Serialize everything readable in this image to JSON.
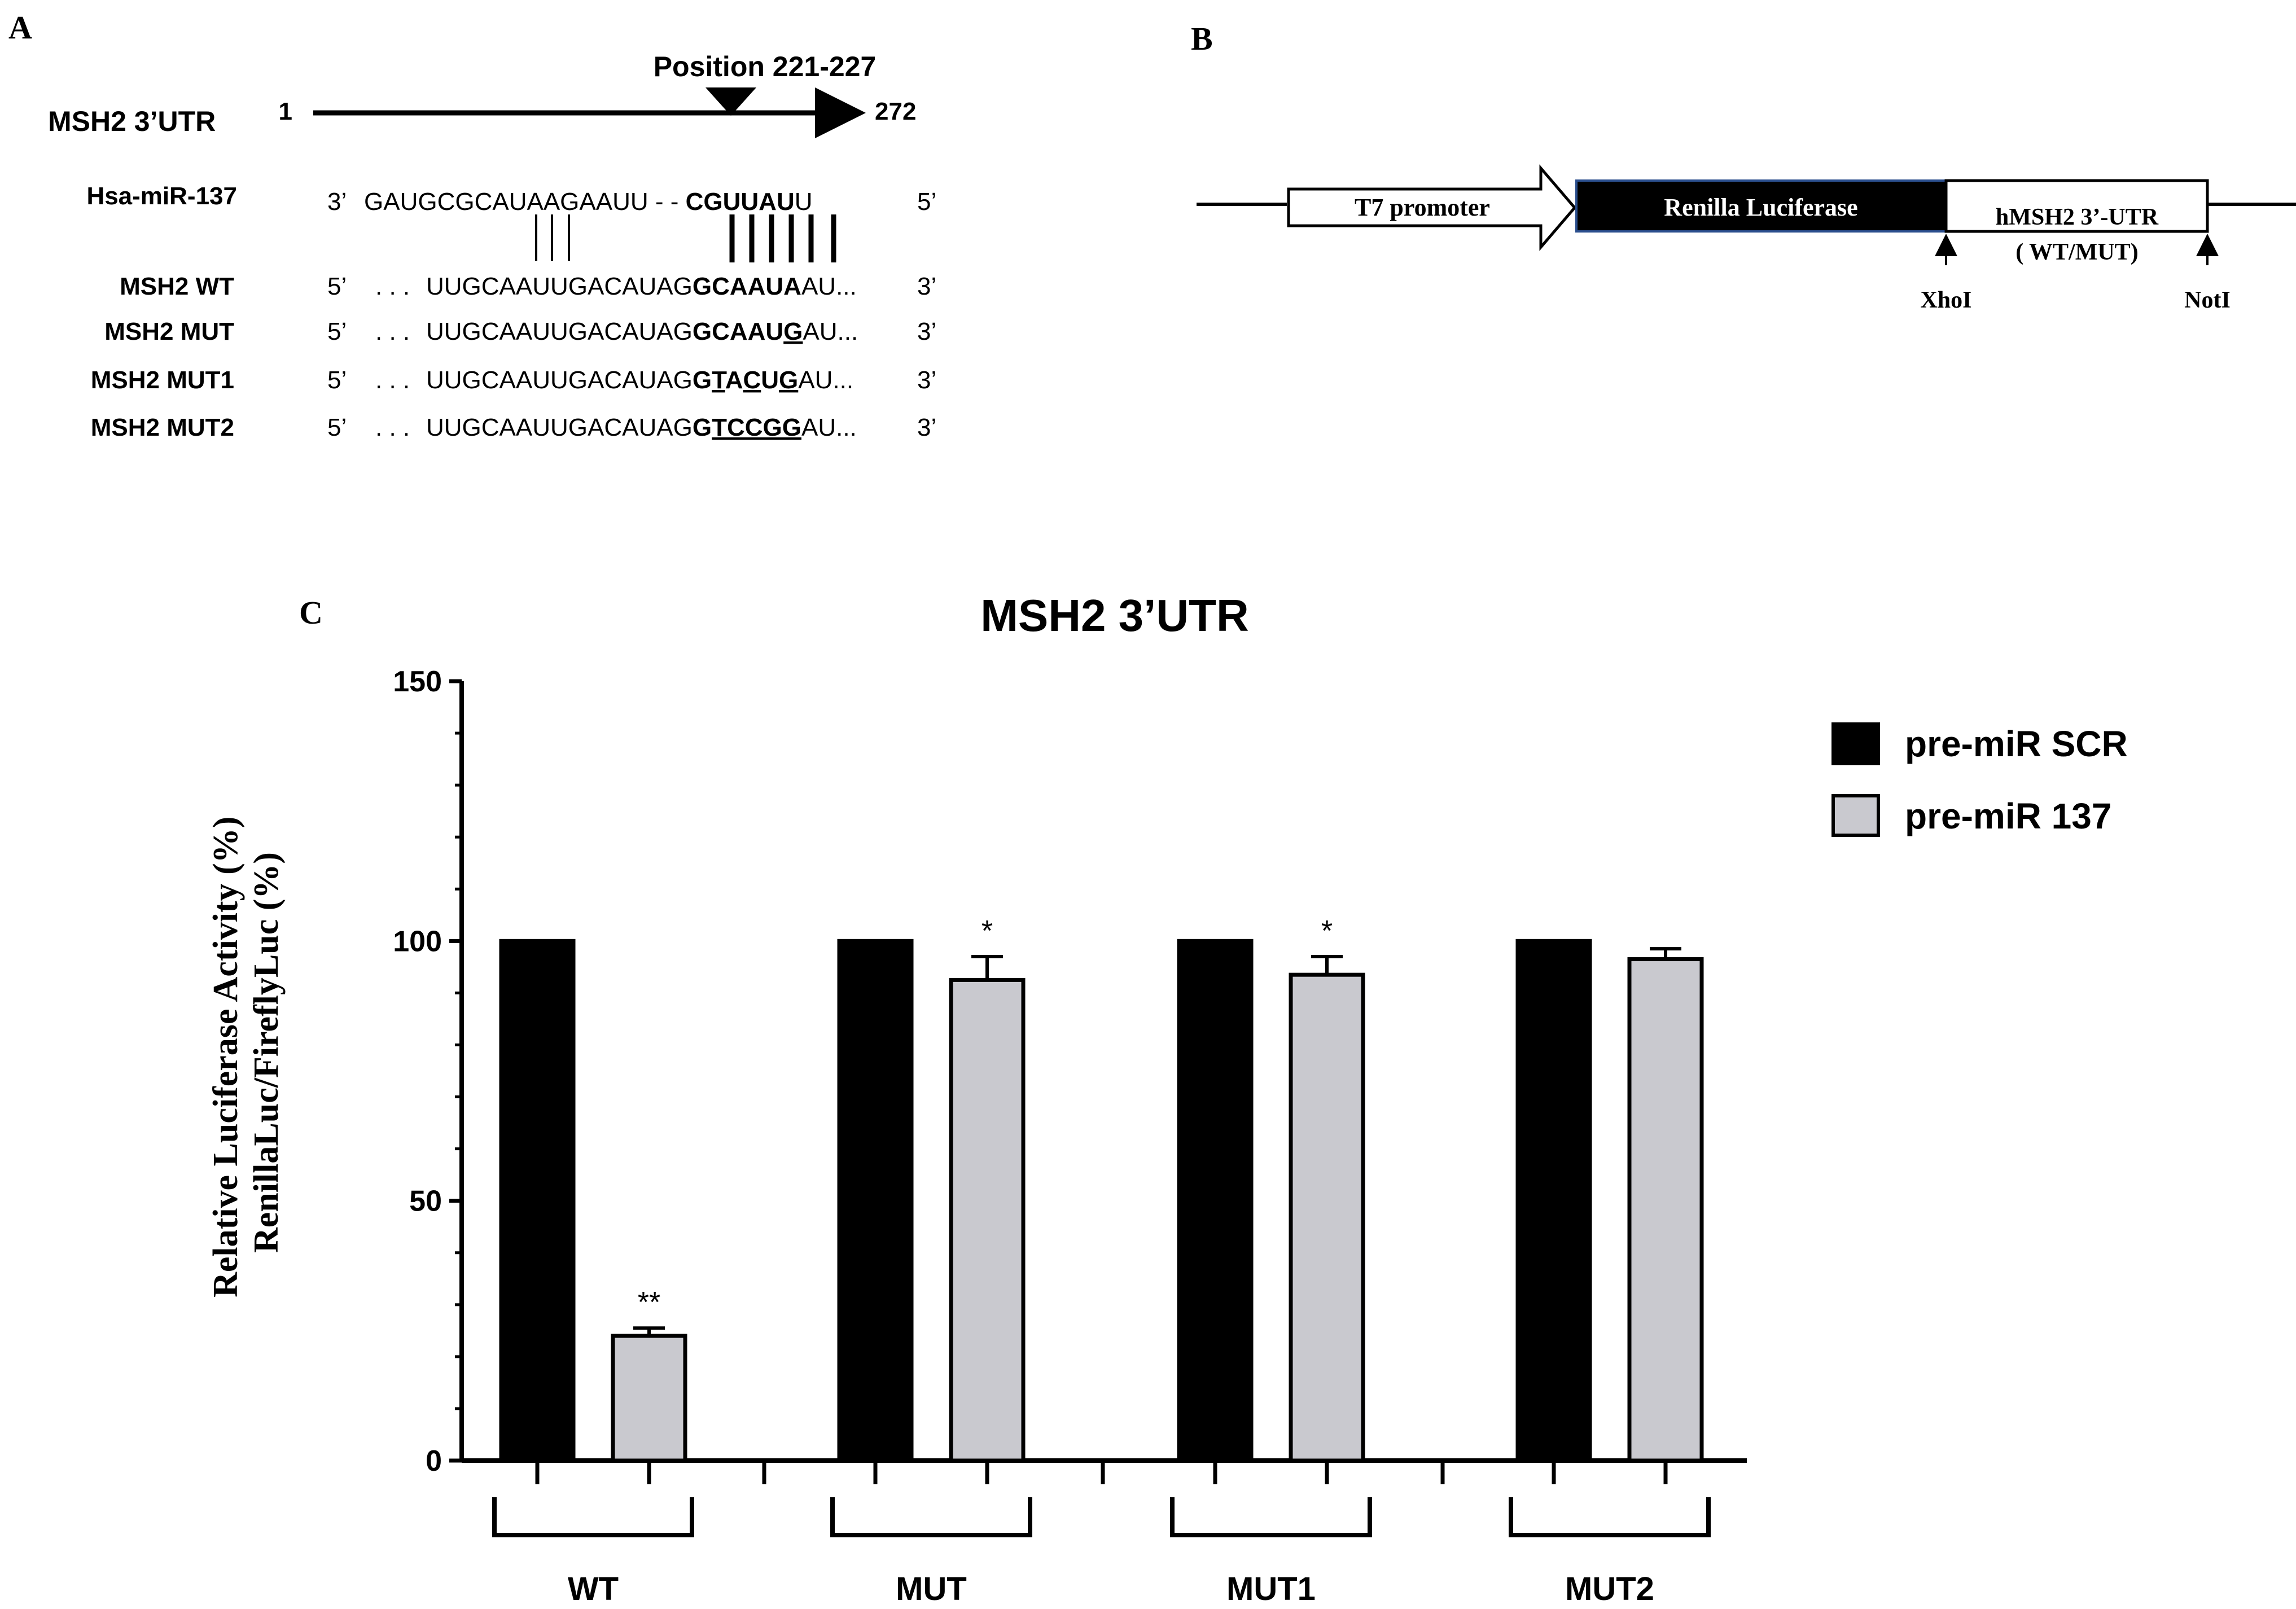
{
  "panels": {
    "a": {
      "letter": "A",
      "position_label": "Position 221-227",
      "utr_label": "MSH2  3’UTR",
      "utr_start": "1",
      "utr_end": "272",
      "mirna": {
        "name": "Hsa-miR-137",
        "end3": "3’",
        "seq_plain": "GAUGCGCAUAAGAAUU - - ",
        "seq_bold": "CGUUAU",
        "seq_tail": "U",
        "end5": "5’"
      },
      "rows": [
        {
          "name": "MSH2 WT",
          "end5": "5’",
          "dots": ". . .",
          "prefix": "UUGCAAUUGACAUAG",
          "site": [
            {
              "t": "GCAAUA",
              "b": true,
              "u": false
            }
          ],
          "suffix": "AU...",
          "end3": "3’"
        },
        {
          "name": "MSH2 MUT",
          "end5": "5’",
          "dots": ". . .",
          "prefix": "UUGCAAUUGACAUAG",
          "site": [
            {
              "t": "GCAAU",
              "b": true,
              "u": false
            },
            {
              "t": "G",
              "b": true,
              "u": true
            }
          ],
          "suffix": "AU...",
          "end3": "3’"
        },
        {
          "name": "MSH2 MUT1",
          "end5": "5’",
          "dots": ". . .",
          "prefix": "UUGCAAUUGACAUAG",
          "site": [
            {
              "t": "G",
              "b": true,
              "u": false
            },
            {
              "t": "T",
              "b": true,
              "u": true
            },
            {
              "t": "A",
              "b": true,
              "u": false
            },
            {
              "t": "C",
              "b": true,
              "u": true
            },
            {
              "t": "U",
              "b": true,
              "u": false
            },
            {
              "t": "G",
              "b": true,
              "u": true
            }
          ],
          "suffix": "AU...",
          "end3": "3’"
        },
        {
          "name": "MSH2 MUT2",
          "end5": "5’",
          "dots": ". . .",
          "prefix": "UUGCAAUUGACAUAG",
          "site": [
            {
              "t": "G",
              "b": true,
              "u": false
            },
            {
              "t": "TCCGG",
              "b": true,
              "u": true
            }
          ],
          "suffix": "AU...",
          "end3": "3’"
        }
      ]
    },
    "b": {
      "letter": "B",
      "promoter": "T7 promoter",
      "luciferase": "Renilla Luciferase",
      "utr_line1": "hMSH2 3’-UTR",
      "utr_line2": "( WT/MUT)",
      "site_left": "XhoI",
      "site_right": "NotI"
    },
    "c": {
      "letter": "C"
    }
  },
  "chart_data": {
    "type": "bar",
    "title": "MSH2 3’UTR",
    "ylabel_line1": "Relative Luciferase Activity (%)",
    "ylabel_line2": "RenillaLuc/FireflyLuc (%)",
    "xlabel": "",
    "categories": [
      "WT",
      "MUT",
      "MUT1",
      "MUT2"
    ],
    "series": [
      {
        "name": "pre-miR SCR",
        "color": "#000000",
        "values": [
          100,
          100,
          100,
          100
        ],
        "errors": [
          0,
          0,
          0,
          0
        ],
        "sig": [
          "",
          "",
          "",
          ""
        ]
      },
      {
        "name": "pre-miR 137",
        "color": "#c9c9cf",
        "values": [
          24,
          92.5,
          93.5,
          96.5
        ],
        "errors": [
          1.5,
          4.5,
          3.5,
          2
        ],
        "sig": [
          "**",
          "*",
          "*",
          ""
        ]
      }
    ],
    "ylim": [
      0,
      150
    ],
    "yticks": [
      0,
      50,
      100,
      150
    ],
    "grid": false,
    "legend": "top-right"
  }
}
